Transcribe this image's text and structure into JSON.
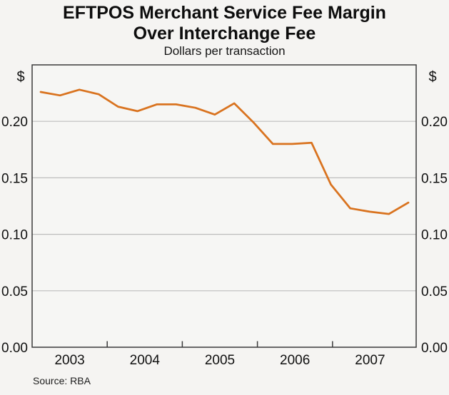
{
  "header": {
    "title_line1": "EFTPOS Merchant Service Fee Margin",
    "title_line2": "Over Interchange Fee",
    "subtitle": "Dollars per transaction"
  },
  "footer": {
    "source_note": "Source: RBA"
  },
  "colors": {
    "line": "#d9731f",
    "grid": "#bdbdbd",
    "frame": "#3a3a3a",
    "background": "#f5f4f2",
    "plot_fill": "#f6f6f4"
  },
  "chart_data": {
    "type": "line",
    "title": "EFTPOS Merchant Service Fee Margin Over Interchange Fee",
    "subtitle": "Dollars per transaction",
    "source": "Source: RBA",
    "ylabel": "$",
    "ylim": [
      0,
      0.25
    ],
    "yticks": [
      0,
      0.05,
      0.1,
      0.15,
      0.2
    ],
    "ytick_labels": [
      "0.00",
      "0.05",
      "0.10",
      "0.15",
      "0.20"
    ],
    "x_year_labels": [
      "2003",
      "2004",
      "2005",
      "2006",
      "2007"
    ],
    "grid": true,
    "legend": "none",
    "x": [
      "Mar 2003",
      "Jun 2003",
      "Sep 2003",
      "Dec 2003",
      "Mar 2004",
      "Jun 2004",
      "Sep 2004",
      "Dec 2004",
      "Mar 2005",
      "Jun 2005",
      "Sep 2005",
      "Dec 2005",
      "Mar 2006",
      "Jun 2006",
      "Sep 2006",
      "Dec 2006",
      "Mar 2007",
      "Jun 2007",
      "Sep 2007",
      "Dec 2007"
    ],
    "series": [
      {
        "name": "EFTPOS merchant service fee margin over interchange fee ($ per transaction)",
        "color": "#d9731f",
        "values": [
          0.226,
          0.223,
          0.228,
          0.224,
          0.213,
          0.209,
          0.215,
          0.215,
          0.212,
          0.206,
          0.216,
          0.199,
          0.18,
          0.18,
          0.181,
          0.144,
          0.123,
          0.12,
          0.118,
          0.128
        ]
      }
    ]
  }
}
